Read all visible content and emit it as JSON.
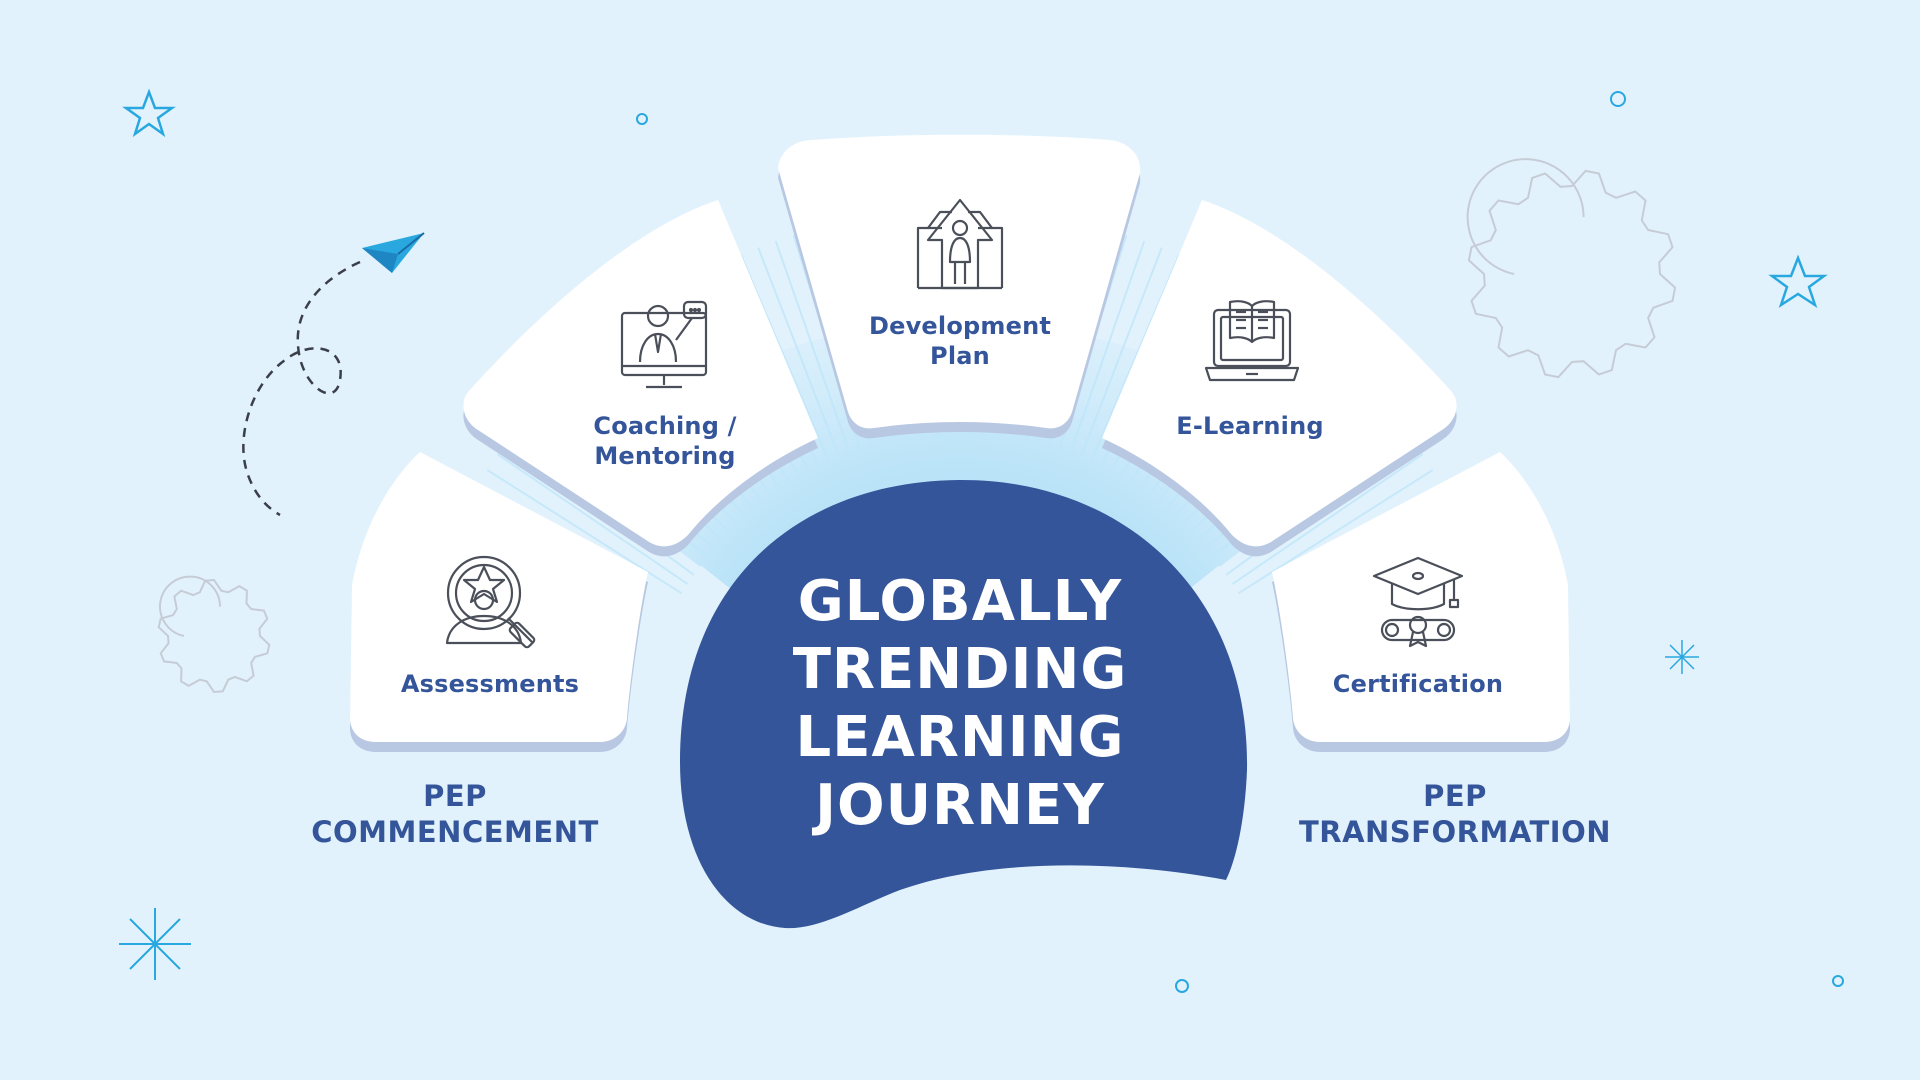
{
  "title": "GLOBALLY\nTRENDING\nLEARNING\nJOURNEY",
  "cards": [
    {
      "label": "Assessments",
      "icon": "assessment-search-icon"
    },
    {
      "label": "Coaching /\nMentoring",
      "icon": "coaching-presentation-icon"
    },
    {
      "label": "Development\nPlan",
      "icon": "development-growth-icon"
    },
    {
      "label": "E-Learning",
      "icon": "elearning-laptop-book-icon"
    },
    {
      "label": "Certification",
      "icon": "graduation-diploma-icon"
    }
  ],
  "phases": {
    "left": "PEP\nCOMMENCEMENT",
    "right": "PEP\nTRANSFORMATION"
  },
  "colors": {
    "background": "#e2f2fc",
    "center_blob": "#34559a",
    "card": "#ffffff",
    "card_shadow": "#b9c8e2",
    "label_text": "#34559a",
    "accent_cyan": "#29a8e0",
    "ray": "#8fd0f4"
  }
}
